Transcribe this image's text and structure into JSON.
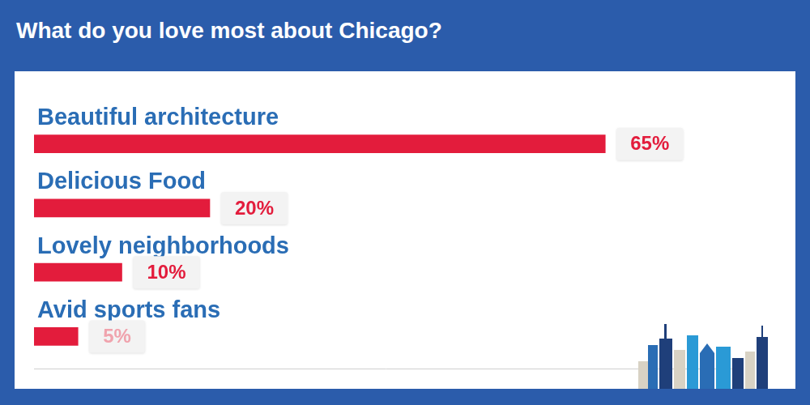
{
  "chart_data": {
    "type": "bar",
    "title": "What do you love most about Chicago?",
    "categories": [
      "Beautiful architecture",
      "Delicious Food",
      "Lovely neighborhoods",
      "Avid sports fans"
    ],
    "values": [
      65,
      20,
      10,
      5
    ],
    "value_labels": [
      "65%",
      "20%",
      "10%",
      "5%"
    ],
    "color": "#e31c3c",
    "orientation": "horizontal",
    "xlim": [
      0,
      80
    ],
    "data_labels": true,
    "tick_labels": false,
    "grid": false
  }
}
